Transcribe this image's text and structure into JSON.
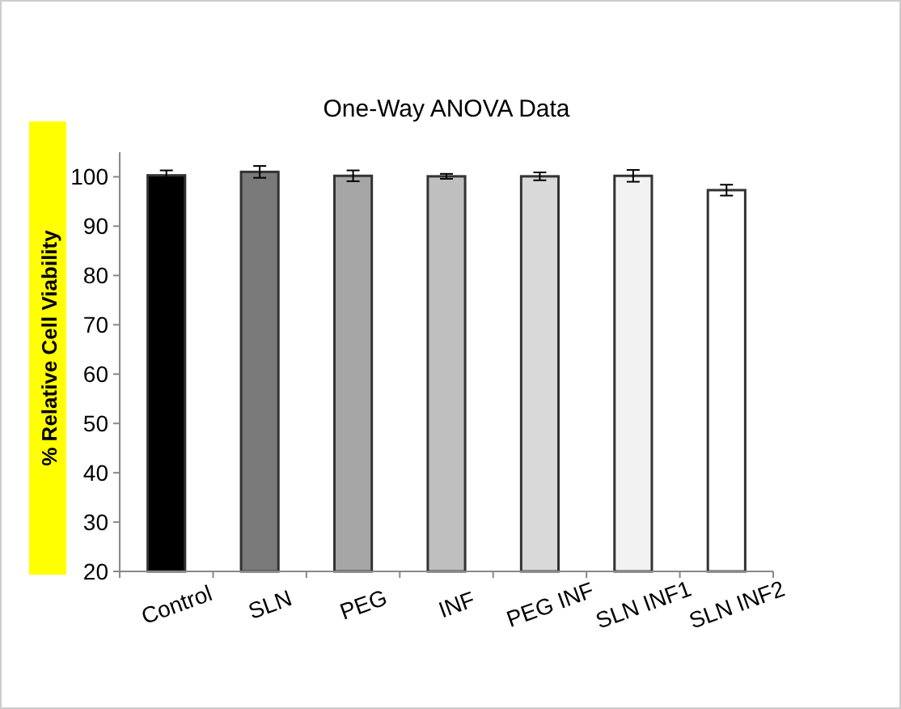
{
  "chart_data": {
    "type": "bar",
    "title": "One-Way ANOVA Data",
    "ylabel": "% Relative Cell Viability",
    "categories": [
      "Control",
      "SLN",
      "PEG",
      "INF",
      "PEG INF",
      "SLN INF1",
      "SLN INF2"
    ],
    "values": [
      100.3,
      101,
      100.2,
      100.1,
      100.1,
      100.2,
      97.3
    ],
    "errors": [
      1,
      1.2,
      1.1,
      0.5,
      0.8,
      1.2,
      1.1
    ],
    "colors": [
      "#000000",
      "#7a7a7a",
      "#a6a6a6",
      "#bfbfbf",
      "#d9d9d9",
      "#f2f2f2",
      "#ffffff"
    ],
    "ylim": [
      20,
      105
    ],
    "yticks": [
      20,
      30,
      40,
      50,
      60,
      70,
      80,
      90,
      100
    ],
    "grid": false
  }
}
